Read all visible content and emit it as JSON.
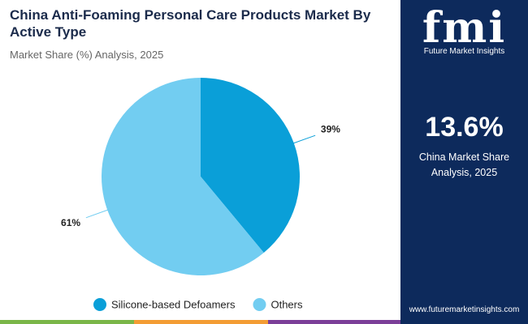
{
  "chart_data": {
    "type": "pie",
    "title": "China Anti-Foaming Personal Care Products Market By Active Type",
    "subtitle": "Market Share (%) Analysis, 2025",
    "categories": [
      "Silicone-based Defoamers",
      "Others"
    ],
    "values": [
      39,
      61
    ],
    "value_labels": [
      "39%",
      "61%"
    ],
    "colors": [
      "#0a9fd8",
      "#72cdf1"
    ],
    "legend": "bottom"
  },
  "side_panel": {
    "logo": "fmi",
    "logo_tagline": "Future Market Insights",
    "headline": "13.6%",
    "caption": "China Market Share Analysis, 2025",
    "url": "www.futuremarketinsights.com"
  }
}
